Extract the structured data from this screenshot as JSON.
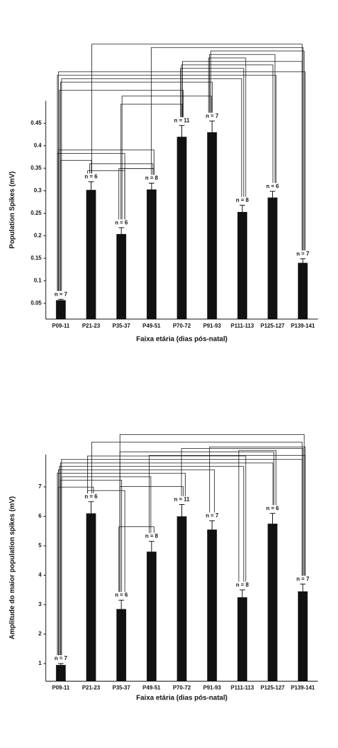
{
  "chart_data": [
    {
      "type": "bar",
      "color": "#111111",
      "categories": [
        "P09-11",
        "P21-23",
        "P35-37",
        "P49-51",
        "P70-72",
        "P91-93",
        "P111-113",
        "P125-127",
        "P139-141"
      ],
      "values": [
        0.057,
        0.302,
        0.204,
        0.303,
        0.42,
        0.43,
        0.253,
        0.285,
        0.14
      ],
      "errors": [
        0.002,
        0.018,
        0.014,
        0.014,
        0.025,
        0.025,
        0.015,
        0.014,
        0.009
      ],
      "annotations": [
        "n = 7",
        "n = 6",
        "n = 6",
        "n = 8",
        "n = 11",
        "n = 7",
        "n = 8",
        "n = 6",
        "n = 7"
      ],
      "ylim": [
        0.015,
        0.5
      ],
      "yticks": [
        0.05,
        0.1,
        0.15,
        0.2,
        0.25,
        0.3,
        0.35,
        0.4,
        0.45
      ],
      "y_label": "Population Spikes (mV)",
      "x_label": "Faixa etária (dias pós-natal)",
      "brackets": [
        [
          1,
          2
        ],
        [
          2,
          3
        ],
        [
          1,
          3
        ],
        [
          2,
          4
        ],
        [
          2,
          5
        ],
        [
          0,
          1
        ],
        [
          0,
          2
        ],
        [
          0,
          3
        ],
        [
          0,
          4
        ],
        [
          0,
          5
        ],
        [
          0,
          6
        ],
        [
          0,
          7
        ],
        [
          0,
          8
        ],
        [
          4,
          6
        ],
        [
          4,
          7
        ],
        [
          4,
          8
        ],
        [
          5,
          6
        ],
        [
          5,
          7
        ],
        [
          5,
          8
        ],
        [
          3,
          8
        ],
        [
          1,
          8
        ]
      ]
    },
    {
      "type": "bar",
      "color": "#111111",
      "categories": [
        "P09-11",
        "P21-23",
        "P35-37",
        "P49-51",
        "P70-72",
        "P91-93",
        "P111-113",
        "P125-127",
        "P139-141"
      ],
      "values": [
        0.95,
        6.1,
        2.85,
        4.8,
        6.0,
        5.55,
        3.25,
        5.75,
        3.45
      ],
      "errors": [
        0.05,
        0.4,
        0.3,
        0.35,
        0.4,
        0.3,
        0.25,
        0.35,
        0.25
      ],
      "annotations": [
        "n = 7",
        "n = 6",
        "n = 6",
        "n = 8",
        "n = 11",
        "n = 7",
        "n = 8",
        "n = 6",
        "n = 7"
      ],
      "ylim": [
        0.4,
        8.1
      ],
      "yticks": [
        1,
        2,
        3,
        4,
        5,
        6,
        7
      ],
      "y_label": "Amplitude do maior population spikes (mV)",
      "x_label": "Faixa etária (dias pós-natal)",
      "brackets": [
        [
          1,
          2
        ],
        [
          2,
          3
        ],
        [
          2,
          4
        ],
        [
          0,
          1
        ],
        [
          0,
          2
        ],
        [
          0,
          3
        ],
        [
          0,
          4
        ],
        [
          0,
          5
        ],
        [
          0,
          6
        ],
        [
          0,
          7
        ],
        [
          0,
          8
        ],
        [
          1,
          6
        ],
        [
          3,
          8
        ],
        [
          2,
          7
        ],
        [
          4,
          8
        ],
        [
          1,
          8
        ],
        [
          6,
          7
        ],
        [
          5,
          8
        ],
        [
          2,
          8
        ]
      ]
    }
  ]
}
